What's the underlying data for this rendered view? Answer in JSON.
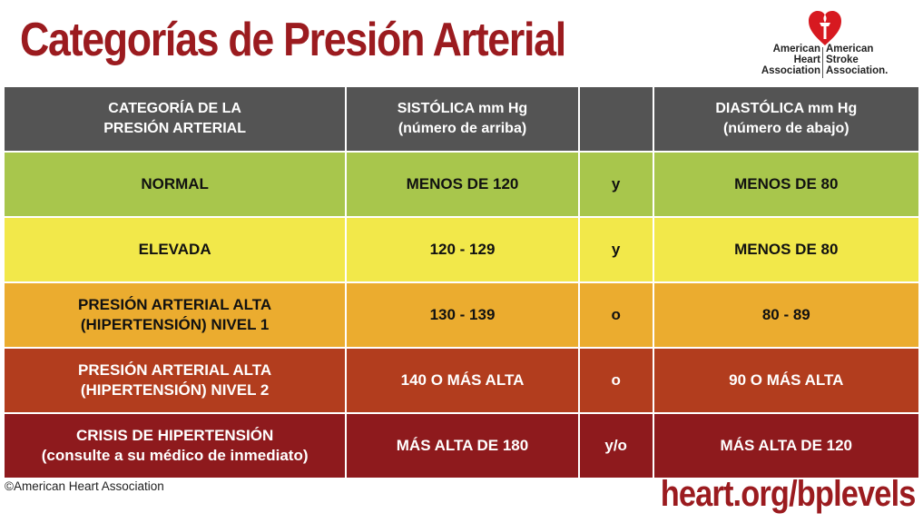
{
  "title": "Categorías de Presión Arterial",
  "logo": {
    "left_lines": [
      "American",
      "Heart",
      "Association"
    ],
    "right_lines": [
      "American",
      "Stroke",
      "Association."
    ]
  },
  "table": {
    "header": {
      "category": [
        "CATEGORÍA DE LA",
        "PRESIÓN ARTERIAL"
      ],
      "systolic": [
        "SISTÓLICA mm Hg",
        "(número de arriba)"
      ],
      "connector": "",
      "diastolic": [
        "DIASTÓLICA mm Hg",
        "(número de abajo)"
      ]
    },
    "rows": [
      {
        "category": [
          "NORMAL"
        ],
        "systolic": "MENOS DE 120",
        "connector": "y",
        "diastolic": "MENOS DE 80"
      },
      {
        "category": [
          "ELEVADA"
        ],
        "systolic": "120 - 129",
        "connector": "y",
        "diastolic": "MENOS DE 80"
      },
      {
        "category": [
          "PRESIÓN ARTERIAL ALTA",
          "(HIPERTENSIÓN) NIVEL 1"
        ],
        "systolic": "130 - 139",
        "connector": "o",
        "diastolic": "80 - 89"
      },
      {
        "category": [
          "PRESIÓN ARTERIAL ALTA",
          "(HIPERTENSIÓN) NIVEL 2"
        ],
        "systolic": "140 O MÁS ALTA",
        "connector": "o",
        "diastolic": "90 O MÁS ALTA"
      },
      {
        "category": [
          "CRISIS DE HIPERTENSIÓN",
          "(consulte a su médico de inmediato)"
        ],
        "systolic": "MÁS ALTA DE 180",
        "connector": "y/o",
        "diastolic": "MÁS ALTA DE 120"
      }
    ]
  },
  "colors": {
    "title": "#9b1b1f",
    "header": "#545454",
    "normal": "#a8c64c",
    "elevada": "#f2e84a",
    "nivel1": "#ebac2f",
    "nivel2": "#b23d1e",
    "crisis": "#8e1a1d"
  },
  "footer": {
    "copyright": "©American Heart Association",
    "url": "heart.org/bplevels"
  }
}
